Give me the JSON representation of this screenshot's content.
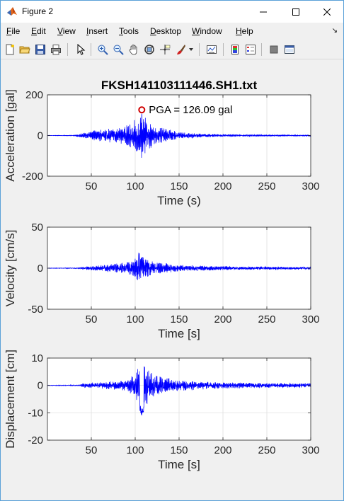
{
  "window": {
    "title": "Figure 2",
    "colors": {
      "border": "#5aa0d8",
      "plot_line": "#0000ff",
      "pga_marker": "#d00000"
    }
  },
  "menu": [
    "File",
    "Edit",
    "View",
    "Insert",
    "Tools",
    "Desktop",
    "Window",
    "Help"
  ],
  "toolbar_icons": [
    "new-figure-icon",
    "open-file-icon",
    "save-icon",
    "print-icon",
    "edit-plot-arrow-icon",
    "zoom-in-icon",
    "zoom-out-icon",
    "pan-hand-icon",
    "rotate-3d-icon",
    "data-cursor-icon",
    "brush-icon",
    "brush-dropdown-icon",
    "link-plot-icon",
    "insert-colorbar-icon",
    "insert-legend-icon",
    "hide-plot-tools-icon",
    "show-plot-tools-icon"
  ],
  "chart_data": [
    {
      "type": "line",
      "title": "FKSH141103111446.SH1.txt",
      "xlabel": "Time (s)",
      "ylabel": "Acceleration [gal]",
      "xlim": [
        0,
        300
      ],
      "ylim": [
        -200,
        200
      ],
      "xticks": [
        50,
        100,
        150,
        200,
        250,
        300
      ],
      "yticks": [
        -200,
        0,
        200
      ],
      "grid": true,
      "annotation": {
        "text": "PGA = 126.09 gal",
        "x": 107.5,
        "y": 126.09
      },
      "envelope": {
        "t": [
          0,
          30,
          40,
          45,
          60,
          80,
          95,
          100,
          105,
          110,
          115,
          125,
          150,
          175,
          200,
          250,
          300
        ],
        "amp": [
          1,
          2,
          12,
          20,
          30,
          38,
          60,
          80,
          126,
          100,
          70,
          45,
          18,
          9,
          6,
          4,
          3
        ]
      }
    },
    {
      "type": "line",
      "xlabel": "Time [s]",
      "ylabel": "Velocity [cm/s]",
      "xlim": [
        0,
        300
      ],
      "ylim": [
        -50,
        50
      ],
      "xticks": [
        50,
        100,
        150,
        200,
        250,
        300
      ],
      "yticks": [
        -50,
        0,
        50
      ],
      "grid": true,
      "envelope": {
        "t": [
          0,
          35,
          40,
          55,
          80,
          95,
          105,
          110,
          120,
          150,
          200,
          250,
          300
        ],
        "amp": [
          0.3,
          0.6,
          1.5,
          3,
          6,
          9,
          22,
          14,
          8,
          4,
          2.5,
          2,
          1.5
        ]
      }
    },
    {
      "type": "line",
      "xlabel": "Time [s]",
      "ylabel": "Displacement [cm]",
      "xlim": [
        0,
        300
      ],
      "ylim": [
        -20,
        10
      ],
      "xticks": [
        50,
        100,
        150,
        200,
        250,
        300
      ],
      "yticks": [
        -20,
        -10,
        0,
        10
      ],
      "grid": true,
      "envelope": {
        "t": [
          0,
          35,
          40,
          60,
          90,
          100,
          108,
          115,
          130,
          160,
          200,
          250,
          300
        ],
        "amp": [
          0.1,
          0.2,
          0.8,
          1.2,
          2,
          5,
          12,
          6,
          3,
          1.8,
          1.2,
          0.9,
          0.8
        ]
      }
    }
  ]
}
